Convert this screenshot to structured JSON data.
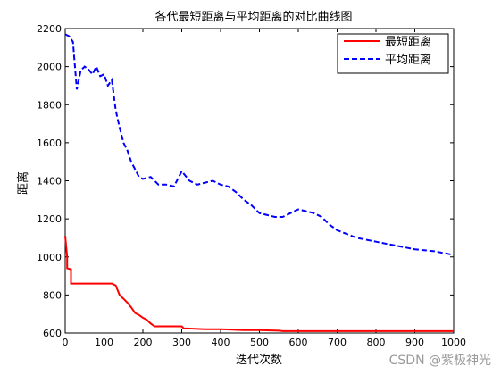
{
  "chart_data": {
    "type": "line",
    "title": "各代最短距离与平均距离的对比曲线图",
    "xlabel": "迭代次数",
    "ylabel": "距离",
    "xlim": [
      0,
      1000
    ],
    "ylim": [
      600,
      2200
    ],
    "xticks": [
      0,
      100,
      200,
      300,
      400,
      500,
      600,
      700,
      800,
      900,
      1000
    ],
    "yticks": [
      600,
      800,
      1000,
      1200,
      1400,
      1600,
      1800,
      2000,
      2200
    ],
    "grid": false,
    "legend_position": "top-right",
    "series": [
      {
        "name": "最短距离",
        "color": "#ff0000",
        "style": "solid",
        "x": [
          0,
          5,
          5,
          15,
          15,
          30,
          30,
          100,
          120,
          130,
          140,
          150,
          160,
          170,
          180,
          190,
          200,
          210,
          220,
          230,
          300,
          305,
          360,
          400,
          460,
          500,
          550,
          560,
          600,
          700,
          800,
          900,
          1000
        ],
        "values": [
          1110,
          1000,
          940,
          935,
          860,
          860,
          860,
          860,
          860,
          850,
          800,
          780,
          760,
          735,
          705,
          695,
          680,
          670,
          650,
          635,
          635,
          625,
          620,
          620,
          615,
          615,
          612,
          610,
          610,
          610,
          610,
          610,
          610
        ]
      },
      {
        "name": "平均距离",
        "color": "#0000ff",
        "style": "dashed",
        "x": [
          0,
          10,
          20,
          30,
          40,
          50,
          60,
          70,
          80,
          90,
          100,
          110,
          120,
          130,
          140,
          150,
          160,
          170,
          180,
          190,
          200,
          220,
          240,
          260,
          280,
          300,
          320,
          340,
          360,
          380,
          400,
          420,
          440,
          460,
          480,
          500,
          520,
          540,
          560,
          580,
          600,
          620,
          640,
          660,
          680,
          700,
          750,
          800,
          850,
          900,
          950,
          1000
        ],
        "values": [
          2170,
          2160,
          2130,
          1880,
          1980,
          2000,
          1985,
          1960,
          2000,
          1950,
          1960,
          1900,
          1930,
          1770,
          1680,
          1600,
          1560,
          1500,
          1460,
          1420,
          1410,
          1420,
          1380,
          1380,
          1370,
          1450,
          1400,
          1380,
          1390,
          1400,
          1380,
          1370,
          1340,
          1300,
          1270,
          1230,
          1220,
          1210,
          1210,
          1230,
          1250,
          1240,
          1230,
          1210,
          1170,
          1140,
          1100,
          1080,
          1060,
          1040,
          1030,
          1010
        ]
      }
    ]
  },
  "watermark": "CSDN @紫极神光"
}
